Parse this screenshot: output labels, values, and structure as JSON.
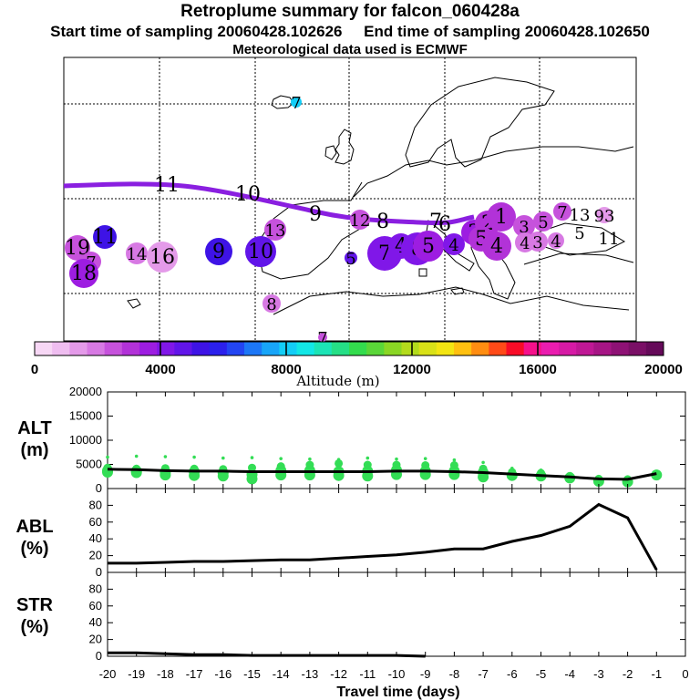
{
  "title": "Retroplume summary for falcon_060428a",
  "subtitle": "Start time of sampling 20060428.102626     End time of sampling 20060428.102650",
  "met_note": "Meteorological data used is ECMWF",
  "colors": {
    "trajectory": "#8a1fe0",
    "lineplot": "#000000",
    "scatter": "#33dd55"
  },
  "colorbar": {
    "xlabel": "Altitude (m)",
    "ticks": [
      "0",
      "4000",
      "8000",
      "12000",
      "16000",
      "20000"
    ],
    "colors": [
      "#f7d7f5",
      "#efbdf0",
      "#e49ae9",
      "#d779e3",
      "#c652dc",
      "#b232d8",
      "#9d1de1",
      "#8017e8",
      "#6115e9",
      "#3e13e6",
      "#2b20ec",
      "#2345f2",
      "#1d77f6",
      "#18a5f8",
      "#13cdf6",
      "#12e7e6",
      "#1ce4b6",
      "#25df86",
      "#33dc4d",
      "#5ad638",
      "#8ad624",
      "#b3db1c",
      "#d9e117",
      "#f3e512",
      "#ffc010",
      "#ff8d11",
      "#ff4a18",
      "#f80c27",
      "#f5108b",
      "#ea1caf",
      "#d61aa5",
      "#bf1895",
      "#a61585",
      "#8e1275",
      "#7a0f66",
      "#650a59"
    ]
  },
  "map": {
    "trajectory_labels": [
      {
        "text": "11",
        "size": "big",
        "dot": false
      },
      {
        "text": "10",
        "size": "big",
        "dot": false
      },
      {
        "text": "9",
        "size": "big",
        "dot": false
      },
      {
        "text": "8",
        "size": "big",
        "dot": false
      },
      {
        "text": "7",
        "size": "big",
        "dot": false
      },
      {
        "text": "6",
        "size": "big",
        "dot": false
      }
    ],
    "clusters": [
      {
        "text": "19",
        "color": "#c652dc",
        "r": 14
      },
      {
        "text": "7",
        "color": "#c652dc",
        "r": 11
      },
      {
        "text": "18",
        "color": "#9d1de1",
        "r": 16
      },
      {
        "text": "11",
        "color": "#3e13e6",
        "r": 13
      },
      {
        "text": "14",
        "color": "#d779e3",
        "r": 12
      },
      {
        "text": "16",
        "color": "#e49ae9",
        "r": 17
      },
      {
        "text": "9",
        "color": "#3e13e6",
        "r": 15
      },
      {
        "text": "10",
        "color": "#6115e9",
        "r": 17
      },
      {
        "text": "13",
        "color": "#c652dc",
        "r": 12
      },
      {
        "text": "8",
        "color": "#d779e3",
        "r": 10
      },
      {
        "text": "5",
        "color": "#6115e9",
        "r": 7
      },
      {
        "text": "7",
        "color": "#8017e8",
        "r": 19
      },
      {
        "text": "4",
        "color": "#8017e8",
        "r": 14
      },
      {
        "text": "8",
        "color": "#8017e8",
        "r": 18
      },
      {
        "text": "5",
        "color": "#9d1de1",
        "r": 17
      },
      {
        "text": "4",
        "color": "#8017e8",
        "r": 12
      },
      {
        "text": "3",
        "color": "#9d1de1",
        "r": 14
      },
      {
        "text": "2",
        "color": "#b232d8",
        "r": 14
      },
      {
        "text": "1",
        "color": "#b232d8",
        "r": 16
      },
      {
        "text": "5",
        "color": "#b232d8",
        "r": 14
      },
      {
        "text": "4",
        "color": "#b232d8",
        "r": 16
      },
      {
        "text": "3",
        "color": "#c652dc",
        "r": 12
      },
      {
        "text": "5",
        "color": "#c652dc",
        "r": 11
      },
      {
        "text": "7",
        "color": "#c652dc",
        "r": 10
      },
      {
        "text": "4",
        "color": "#d779e3",
        "r": 11
      },
      {
        "text": "3",
        "color": "#d779e3",
        "r": 11
      },
      {
        "text": "4",
        "color": "#d779e3",
        "r": 9
      },
      {
        "text": "12",
        "color": "#c652dc",
        "r": 11
      },
      {
        "text": "93",
        "color": "#e49ae9",
        "r": 9
      },
      {
        "text": "7",
        "color": "#13cdf6",
        "r": 6
      },
      {
        "text": "7",
        "color": "#c652dc",
        "r": 5
      }
    ],
    "plain_labels": [
      {
        "text": "13"
      },
      {
        "text": "5"
      },
      {
        "text": "11"
      }
    ]
  },
  "chart_data": [
    {
      "type": "line",
      "title": "ALT",
      "ylabel": "ALT (m)",
      "xlabel": "Travel time (days)",
      "ylim": [
        0,
        20000
      ],
      "yticks": [
        0,
        5000,
        10000,
        15000,
        20000
      ],
      "x": [
        -20,
        -19,
        -18,
        -17,
        -16,
        -15,
        -14,
        -13,
        -12,
        -11,
        -10,
        -9,
        -8,
        -7,
        -6,
        -5,
        -4,
        -3,
        -2,
        -1
      ],
      "series": [
        {
          "name": "median altitude",
          "values": [
            4000,
            3900,
            3700,
            3600,
            3600,
            3500,
            3500,
            3500,
            3500,
            3500,
            3600,
            3600,
            3500,
            3300,
            3000,
            2700,
            2400,
            2000,
            1900,
            3100
          ]
        }
      ],
      "scatter_clusters": [
        {
          "x": -20,
          "values": [
            6500,
            4300,
            3700,
            3400
          ]
        },
        {
          "x": -19,
          "values": [
            6700,
            4100,
            3600,
            3300
          ]
        },
        {
          "x": -18,
          "values": [
            6600,
            4200,
            3400,
            2800
          ]
        },
        {
          "x": -17,
          "values": [
            6500,
            4100,
            3500,
            2700
          ]
        },
        {
          "x": -16,
          "values": [
            6300,
            4000,
            3200,
            2600
          ]
        },
        {
          "x": -15,
          "values": [
            6400,
            4300,
            2900,
            2000
          ]
        },
        {
          "x": -14,
          "values": [
            6200,
            4600,
            3700,
            2800
          ]
        },
        {
          "x": -13,
          "values": [
            6100,
            4900,
            3700,
            2800
          ]
        },
        {
          "x": -12,
          "values": [
            6000,
            5200,
            3500,
            2700
          ]
        },
        {
          "x": -11,
          "values": [
            6300,
            4900,
            3600,
            2600
          ]
        },
        {
          "x": -10,
          "values": [
            6100,
            4900,
            3800,
            2900
          ]
        },
        {
          "x": -9,
          "values": [
            6200,
            4800,
            3600,
            2900
          ]
        },
        {
          "x": -8,
          "values": [
            5900,
            4800,
            3600,
            2900
          ]
        },
        {
          "x": -7,
          "values": [
            5400,
            4100,
            3300,
            2400
          ]
        },
        {
          "x": -6,
          "values": [
            4200,
            3400,
            2700
          ]
        },
        {
          "x": -5,
          "values": [
            3800,
            3200,
            2600
          ]
        },
        {
          "x": -4,
          "values": [
            3000,
            2600,
            2200
          ]
        },
        {
          "x": -3,
          "values": [
            2400,
            2000,
            1500
          ]
        },
        {
          "x": -2,
          "values": [
            2300,
            1900,
            1400
          ]
        },
        {
          "x": -1,
          "values": [
            3400,
            3000,
            2800
          ]
        }
      ]
    },
    {
      "type": "line",
      "title": "ABL",
      "ylabel": "ABL (%)",
      "xlabel": "Travel time (days)",
      "ylim": [
        0,
        100
      ],
      "yticks": [
        0,
        20,
        40,
        60,
        80
      ],
      "x": [
        -20,
        -19,
        -18,
        -17,
        -16,
        -15,
        -14,
        -13,
        -12,
        -11,
        -10,
        -9,
        -8,
        -7,
        -6,
        -5,
        -4,
        -3,
        -2,
        -1
      ],
      "series": [
        {
          "name": "fraction in ABL",
          "values": [
            11,
            11,
            12,
            13,
            13,
            14,
            15,
            15,
            17,
            19,
            21,
            24,
            28,
            28,
            37,
            44,
            55,
            81,
            65,
            3
          ]
        }
      ]
    },
    {
      "type": "line",
      "title": "STR",
      "ylabel": "STR (%)",
      "xlabel": "Travel time (days)",
      "ylim": [
        0,
        100
      ],
      "yticks": [
        0,
        20,
        40,
        60,
        80
      ],
      "x": [
        -20,
        -19,
        -18,
        -17,
        -16,
        -15,
        -14,
        -13,
        -12,
        -11,
        -10,
        -9
      ],
      "series": [
        {
          "name": "fraction in stratosphere",
          "values": [
            4,
            4,
            3,
            2,
            2,
            1,
            1,
            1,
            1,
            1,
            1,
            0
          ]
        }
      ]
    }
  ],
  "xaxis": {
    "label": "Travel time (days)",
    "ticks": [
      "-20",
      "-19",
      "-18",
      "-17",
      "-16",
      "-15",
      "-14",
      "-13",
      "-12",
      "-11",
      "-10",
      "-9",
      "-8",
      "-7",
      "-6",
      "-5",
      "-4",
      "-3",
      "-2",
      "-1",
      "0"
    ]
  },
  "panel_labels": {
    "alt": [
      "ALT",
      "(m)"
    ],
    "abl": [
      "ABL",
      "(%)"
    ],
    "str": [
      "STR",
      "(%)"
    ]
  }
}
